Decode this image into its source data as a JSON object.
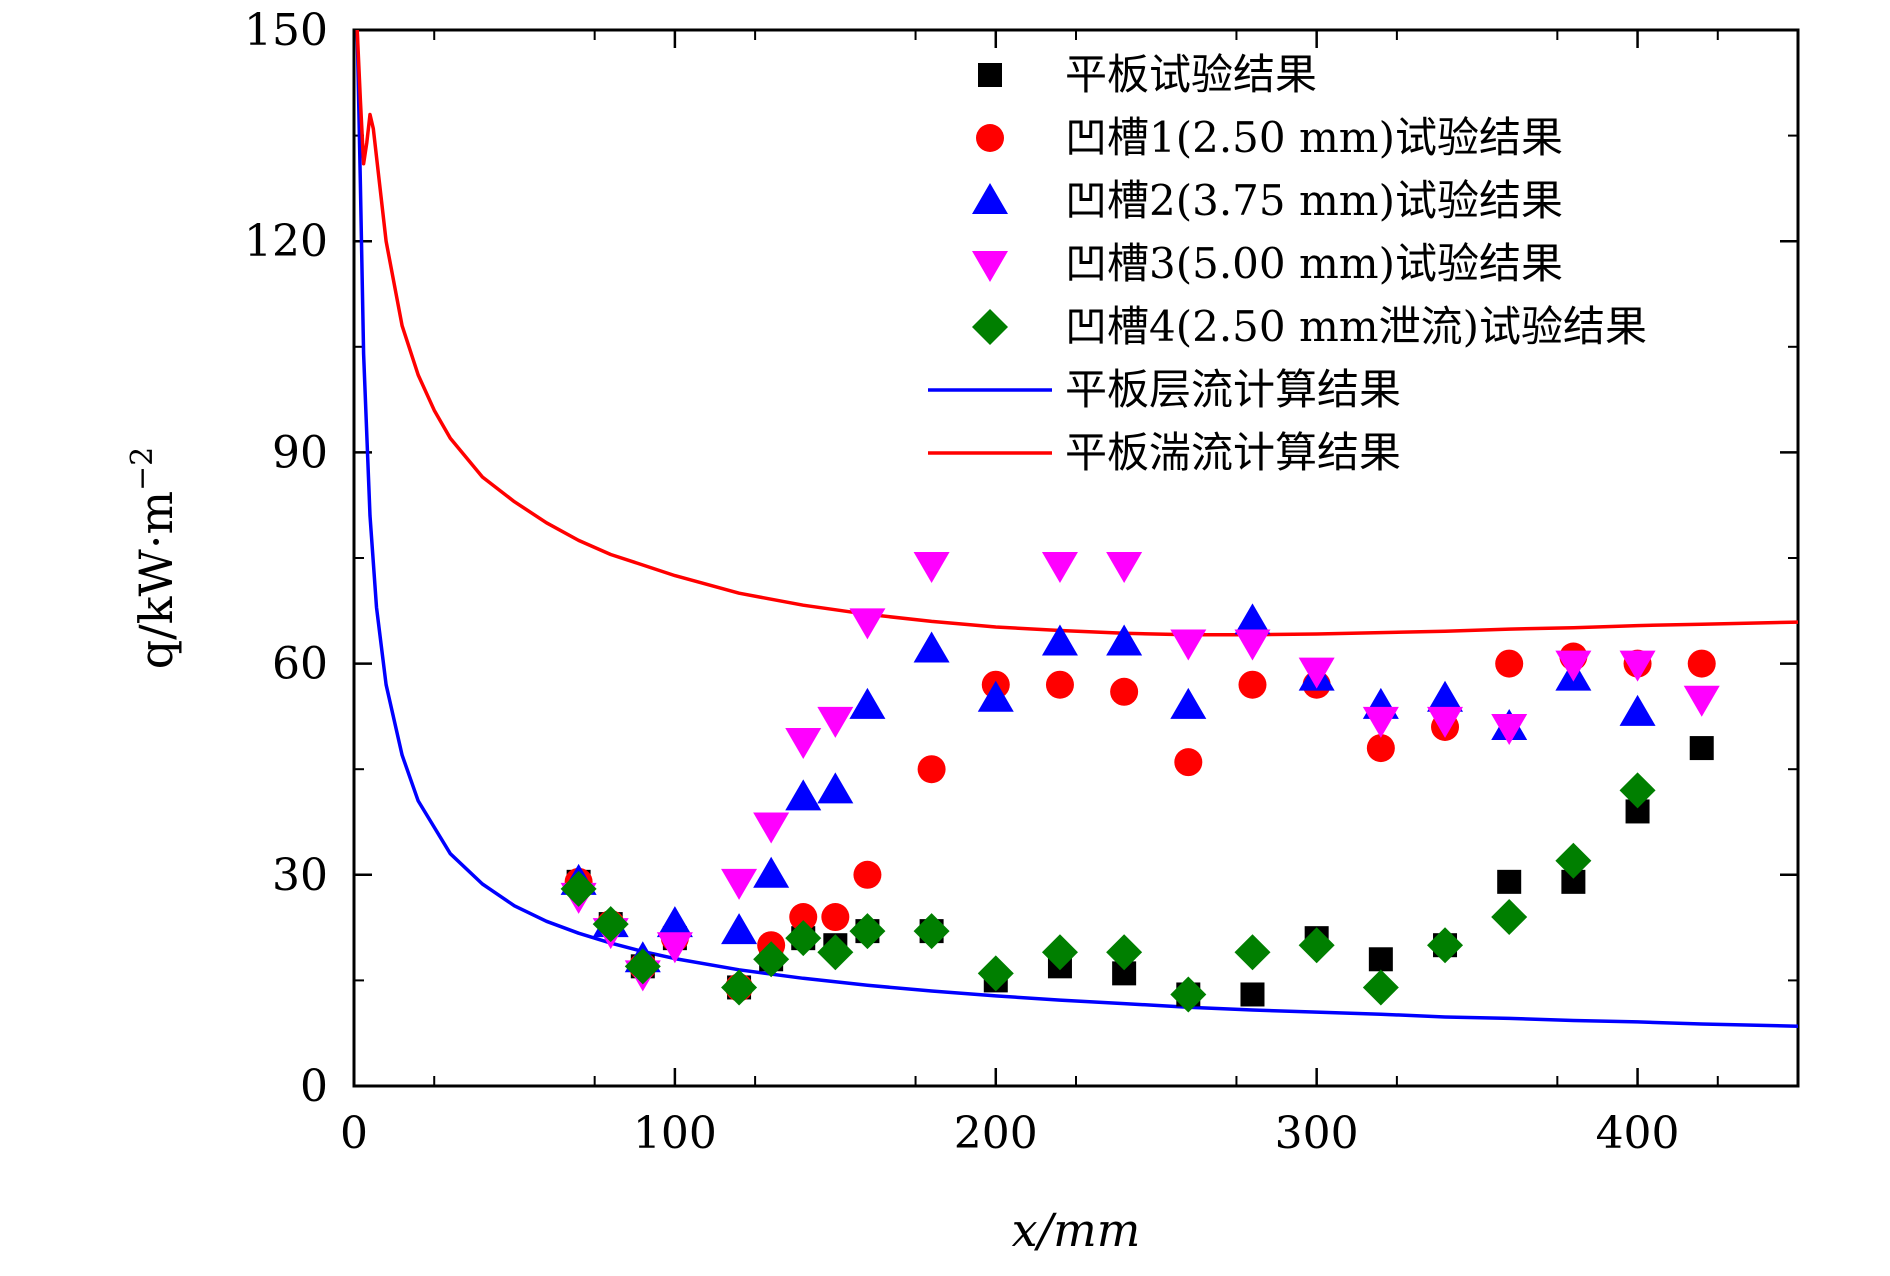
{
  "chart_data": {
    "type": "scatter",
    "xlabel": "x/mm",
    "ylabel": "q/kW·m",
    "ylabel_sup": "−2",
    "xlim": [
      0,
      450
    ],
    "ylim": [
      0,
      150
    ],
    "x_ticks": [
      0,
      100,
      200,
      300,
      400
    ],
    "y_ticks": [
      0,
      30,
      60,
      90,
      120,
      150
    ],
    "grid": false,
    "legend_position": "top-right",
    "series": [
      {
        "name": "平板试验结果",
        "kind": "scatter",
        "marker": "square",
        "color": "#000000",
        "points": [
          [
            70,
            29
          ],
          [
            80,
            23
          ],
          [
            90,
            17
          ],
          [
            100,
            21
          ],
          [
            120,
            14
          ],
          [
            130,
            18
          ],
          [
            140,
            21
          ],
          [
            150,
            20
          ],
          [
            160,
            22
          ],
          [
            180,
            22
          ],
          [
            200,
            15
          ],
          [
            220,
            17
          ],
          [
            240,
            16
          ],
          [
            260,
            13
          ],
          [
            280,
            13
          ],
          [
            300,
            21
          ],
          [
            320,
            18
          ],
          [
            340,
            20
          ],
          [
            360,
            29
          ],
          [
            380,
            29
          ],
          [
            400,
            39
          ],
          [
            420,
            48
          ]
        ]
      },
      {
        "name": "凹槽1(2.50 mm)试验结果",
        "kind": "scatter",
        "marker": "circle",
        "color": "#ff0000",
        "points": [
          [
            70,
            29
          ],
          [
            80,
            23
          ],
          [
            90,
            17
          ],
          [
            100,
            21
          ],
          [
            120,
            14
          ],
          [
            130,
            20
          ],
          [
            140,
            24
          ],
          [
            150,
            24
          ],
          [
            160,
            30
          ],
          [
            180,
            45
          ],
          [
            200,
            57
          ],
          [
            220,
            57
          ],
          [
            240,
            56
          ],
          [
            260,
            46
          ],
          [
            280,
            57
          ],
          [
            300,
            57
          ],
          [
            320,
            48
          ],
          [
            340,
            51
          ],
          [
            360,
            60
          ],
          [
            380,
            61
          ],
          [
            400,
            60
          ],
          [
            420,
            60
          ]
        ]
      },
      {
        "name": "凹槽2(3.75 mm)试验结果",
        "kind": "scatter",
        "marker": "triangle-up",
        "color": "#0000ff",
        "points": [
          [
            70,
            29
          ],
          [
            80,
            23
          ],
          [
            90,
            18
          ],
          [
            100,
            23
          ],
          [
            120,
            22
          ],
          [
            130,
            30
          ],
          [
            140,
            41
          ],
          [
            150,
            42
          ],
          [
            160,
            54
          ],
          [
            180,
            62
          ],
          [
            200,
            55
          ],
          [
            220,
            63
          ],
          [
            240,
            63
          ],
          [
            260,
            54
          ],
          [
            280,
            66
          ],
          [
            300,
            58
          ],
          [
            320,
            54
          ],
          [
            340,
            55
          ],
          [
            360,
            51
          ],
          [
            380,
            58
          ],
          [
            400,
            53
          ]
        ]
      },
      {
        "name": "凹槽3(5.00 mm)试验结果",
        "kind": "scatter",
        "marker": "triangle-down",
        "color": "#ff00ff",
        "points": [
          [
            70,
            27
          ],
          [
            80,
            22
          ],
          [
            90,
            16
          ],
          [
            100,
            20
          ],
          [
            120,
            29
          ],
          [
            130,
            37
          ],
          [
            140,
            49
          ],
          [
            150,
            52
          ],
          [
            160,
            66
          ],
          [
            180,
            74
          ],
          [
            220,
            74
          ],
          [
            240,
            74
          ],
          [
            260,
            63
          ],
          [
            280,
            63
          ],
          [
            300,
            59
          ],
          [
            320,
            52
          ],
          [
            340,
            52
          ],
          [
            360,
            51
          ],
          [
            380,
            60
          ],
          [
            400,
            60
          ],
          [
            420,
            55
          ]
        ]
      },
      {
        "name": "凹槽4(2.50 mm泄流)试验结果",
        "kind": "scatter",
        "marker": "diamond",
        "color": "#007f00",
        "points": [
          [
            70,
            28
          ],
          [
            80,
            23
          ],
          [
            90,
            17
          ],
          [
            120,
            14
          ],
          [
            130,
            18
          ],
          [
            140,
            21
          ],
          [
            150,
            19
          ],
          [
            160,
            22
          ],
          [
            180,
            22
          ],
          [
            200,
            16
          ],
          [
            220,
            19
          ],
          [
            240,
            19
          ],
          [
            260,
            13
          ],
          [
            280,
            19
          ],
          [
            300,
            20
          ],
          [
            320,
            14
          ],
          [
            340,
            20
          ],
          [
            360,
            24
          ],
          [
            380,
            32
          ],
          [
            400,
            42
          ]
        ]
      },
      {
        "name": "平板层流计算结果",
        "kind": "line",
        "color": "#0000ff",
        "points": [
          [
            1,
            150
          ],
          [
            2,
            128
          ],
          [
            3,
            104
          ],
          [
            5,
            81
          ],
          [
            7,
            68
          ],
          [
            10,
            57
          ],
          [
            15,
            47
          ],
          [
            20,
            40.5
          ],
          [
            30,
            33
          ],
          [
            40,
            28.7
          ],
          [
            50,
            25.6
          ],
          [
            60,
            23.4
          ],
          [
            70,
            21.7
          ],
          [
            80,
            20.3
          ],
          [
            90,
            19.1
          ],
          [
            100,
            18.1
          ],
          [
            120,
            16.5
          ],
          [
            140,
            15.3
          ],
          [
            160,
            14.3
          ],
          [
            180,
            13.5
          ],
          [
            200,
            12.8
          ],
          [
            220,
            12.2
          ],
          [
            240,
            11.7
          ],
          [
            260,
            11.2
          ],
          [
            280,
            10.8
          ],
          [
            300,
            10.5
          ],
          [
            320,
            10.2
          ],
          [
            340,
            9.8
          ],
          [
            360,
            9.6
          ],
          [
            380,
            9.3
          ],
          [
            400,
            9.1
          ],
          [
            420,
            8.8
          ],
          [
            450,
            8.5
          ]
        ]
      },
      {
        "name": "平板湍流计算结果",
        "kind": "line",
        "color": "#ff0000",
        "points": [
          [
            1,
            150
          ],
          [
            2,
            140
          ],
          [
            3,
            131
          ],
          [
            4,
            134
          ],
          [
            5,
            138
          ],
          [
            6,
            136
          ],
          [
            8,
            128
          ],
          [
            10,
            120
          ],
          [
            15,
            108
          ],
          [
            20,
            101
          ],
          [
            25,
            96
          ],
          [
            30,
            92
          ],
          [
            40,
            86.5
          ],
          [
            50,
            83
          ],
          [
            60,
            80
          ],
          [
            70,
            77.5
          ],
          [
            80,
            75.5
          ],
          [
            90,
            74
          ],
          [
            100,
            72.5
          ],
          [
            120,
            70
          ],
          [
            140,
            68.3
          ],
          [
            160,
            67
          ],
          [
            180,
            66
          ],
          [
            200,
            65.2
          ],
          [
            220,
            64.7
          ],
          [
            240,
            64.3
          ],
          [
            260,
            64.1
          ],
          [
            280,
            64.1
          ],
          [
            300,
            64.2
          ],
          [
            320,
            64.4
          ],
          [
            340,
            64.6
          ],
          [
            360,
            64.9
          ],
          [
            380,
            65.1
          ],
          [
            400,
            65.4
          ],
          [
            420,
            65.6
          ],
          [
            450,
            65.9
          ]
        ]
      }
    ]
  }
}
